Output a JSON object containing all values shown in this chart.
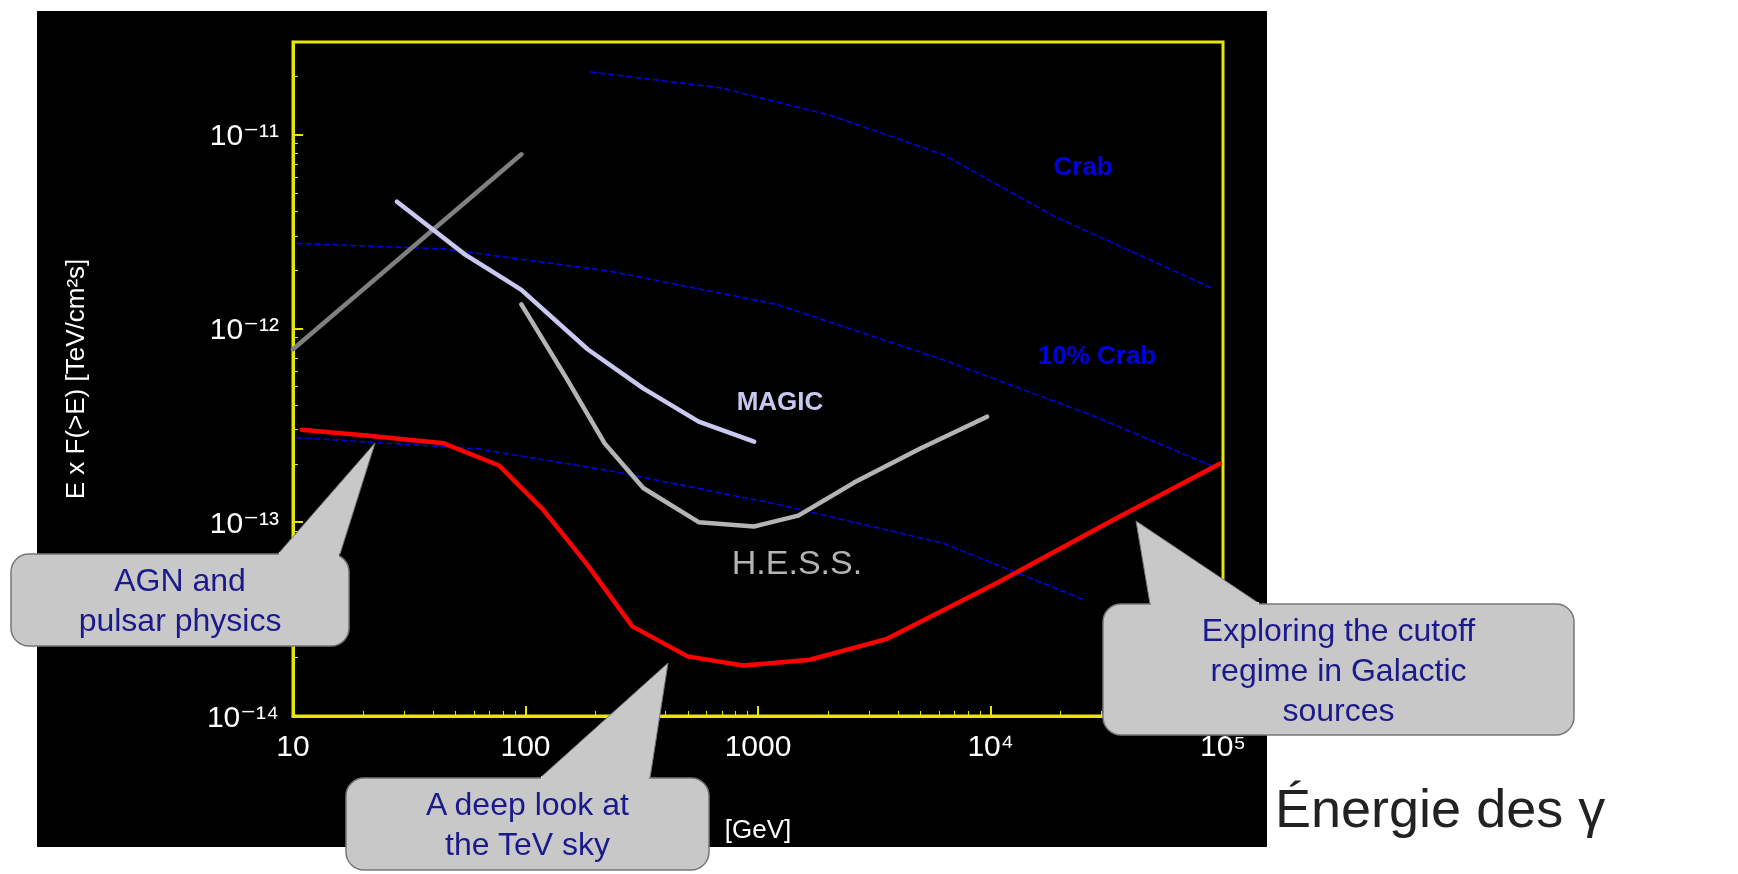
{
  "chart_data": {
    "type": "line",
    "xlabel": "[GeV]",
    "ylabel": "E x F(>E) [TeV/cm²s]",
    "log": "xy",
    "marker": "none",
    "grid": false,
    "xlim": [
      10,
      100000
    ],
    "xticks": [
      10,
      100,
      1000,
      {
        "value": 10000,
        "label": "10⁴"
      },
      {
        "value": 100000,
        "label": "10⁵"
      }
    ],
    "ylim": [
      1e-14,
      3e-11
    ],
    "yticks": [
      {
        "value": 1e-14,
        "label": "10⁻¹⁴"
      },
      {
        "value": 1e-13,
        "label": "10⁻¹³"
      },
      {
        "value": 1e-12,
        "label": "10⁻¹²"
      },
      {
        "value": 1e-11,
        "label": "10⁻¹¹"
      }
    ],
    "series": [
      {
        "name": "Crab",
        "color": "#0000e0",
        "line_style": "dashed",
        "x": [
          191,
          692,
          2070,
          6220,
          18700,
          88600
        ],
        "values": [
          2.1e-11,
          1.74e-11,
          1.25e-11,
          7.9e-12,
          3.8e-12,
          1.62e-12
        ]
      },
      {
        "name": "10% Crab",
        "color": "#0000e0",
        "line_style": "dashed",
        "x": [
          10.4,
          44.5,
          231,
          1200,
          6220,
          27400,
          88600
        ],
        "values": [
          2.74e-12,
          2.57e-12,
          1.97e-12,
          1.33e-12,
          6.9e-13,
          3.55e-13,
          1.96e-13
        ]
      },
      {
        "color": "#0000e0",
        "line_style": "dashed",
        "x": [
          10.4,
          62,
          231,
          1200,
          6220,
          25000
        ],
        "values": [
          2.73e-13,
          2.39e-13,
          1.84e-13,
          1.24e-13,
          7.8e-14,
          4e-14
        ]
      },
      {
        "color": "#808080",
        "line_style": "solid",
        "x": [
          10,
          96
        ],
        "values": [
          7.8e-13,
          7.9e-12
        ]
      },
      {
        "name": "MAGIC",
        "color": "#c8c8f0",
        "line_style": "solid",
        "x": [
          28,
          55,
          96,
          185,
          321,
          556,
          962
        ],
        "values": [
          4.5e-12,
          2.4e-12,
          1.58e-12,
          7.8e-13,
          4.9e-13,
          3.3e-13,
          2.6e-13
        ]
      },
      {
        "name": "H.E.S.S.",
        "color": "#b4b4b4",
        "line_style": "solid",
        "x": [
          96,
          149,
          219,
          321,
          556,
          962,
          1490,
          2590,
          4990,
          9660
        ],
        "values": [
          1.33e-12,
          5.6e-13,
          2.55e-13,
          1.5e-13,
          1e-13,
          9.5e-14,
          1.08e-13,
          1.6e-13,
          2.4e-13,
          3.5e-13
        ]
      },
      {
        "color": "#ff0000",
        "line_style": "solid",
        "x": [
          10.9,
          20.6,
          44.5,
          77,
          119,
          185,
          288,
          498,
          862,
          1670,
          3590,
          10800,
          32300,
          96800
        ],
        "values": [
          3e-13,
          2.8e-13,
          2.55e-13,
          1.96e-13,
          1.16e-13,
          6e-14,
          2.9e-14,
          2.03e-14,
          1.82e-14,
          1.95e-14,
          2.5e-14,
          4.9e-14,
          1e-13,
          2e-13
        ]
      }
    ],
    "annotations": [
      "AGN and\npulsar physics",
      "A deep look at\nthe TeV sky",
      "Exploring the cutoff\nregime in Galactic\nsources",
      "Énergie des γ"
    ]
  }
}
